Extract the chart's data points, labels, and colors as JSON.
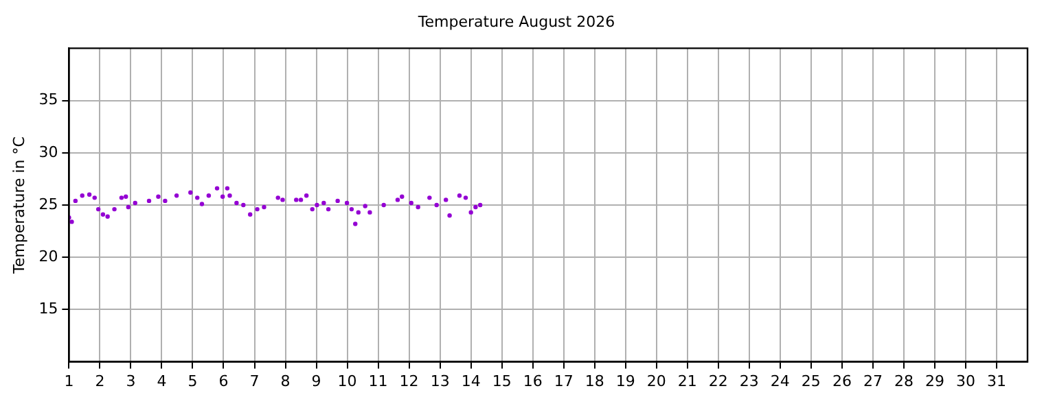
{
  "chart_data": {
    "type": "scatter",
    "title": "Temperature August 2026",
    "ylabel": "Temperature in °C",
    "xlim": [
      1,
      32
    ],
    "xticks": [
      1,
      2,
      3,
      4,
      5,
      6,
      7,
      8,
      9,
      10,
      11,
      12,
      13,
      14,
      15,
      16,
      17,
      18,
      19,
      20,
      21,
      22,
      23,
      24,
      25,
      26,
      27,
      28,
      29,
      30,
      31
    ],
    "ylim": [
      10,
      40
    ],
    "yticks": [
      15,
      20,
      25,
      30,
      35
    ],
    "grid": true,
    "marker": "circle",
    "series": [
      {
        "color": "#9400d3",
        "x": [
          1.0,
          1.09,
          1.21,
          1.43,
          1.66,
          1.83,
          1.95,
          2.1,
          2.25,
          2.47,
          2.7,
          2.84,
          2.92,
          3.14,
          3.59,
          3.89,
          4.11,
          4.48,
          4.93,
          5.15,
          5.3,
          5.52,
          5.79,
          5.97,
          6.12,
          6.2,
          6.42,
          6.64,
          6.86,
          7.09,
          7.31,
          7.76,
          7.91,
          8.35,
          8.5,
          8.68,
          8.87,
          9.02,
          9.24,
          9.39,
          9.69,
          9.99,
          10.14,
          10.26,
          10.36,
          10.58,
          10.73,
          11.18,
          11.63,
          11.77,
          12.07,
          12.29,
          12.66,
          12.89,
          13.19,
          13.31,
          13.63,
          13.83,
          14.0,
          14.15,
          14.3
        ],
        "values": [
          23.8,
          23.4,
          25.4,
          25.9,
          26.0,
          25.7,
          24.6,
          24.1,
          23.9,
          24.6,
          25.7,
          25.8,
          24.8,
          25.2,
          25.4,
          25.8,
          25.4,
          25.9,
          26.2,
          25.7,
          25.1,
          25.9,
          26.6,
          25.8,
          26.6,
          25.9,
          25.2,
          25.0,
          24.1,
          24.6,
          24.8,
          25.7,
          25.5,
          25.5,
          25.5,
          25.9,
          24.6,
          25.0,
          25.2,
          24.6,
          25.4,
          25.2,
          24.6,
          23.2,
          24.3,
          24.9,
          24.3,
          25.0,
          25.5,
          25.8,
          25.2,
          24.8,
          25.7,
          25.0,
          25.5,
          24.0,
          25.9,
          25.7,
          24.3,
          24.8,
          25.0
        ]
      }
    ]
  }
}
